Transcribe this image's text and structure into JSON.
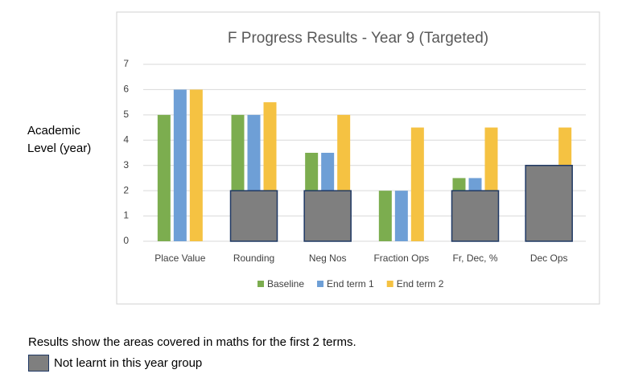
{
  "chart_data": {
    "type": "bar",
    "title": "F Progress Results - Year 9 (Targeted)",
    "y_label": "Academic Level (year)",
    "categories": [
      "Place Value",
      "Rounding",
      "Neg Nos",
      "Fraction Ops",
      "Fr, Dec, %",
      "Dec Ops"
    ],
    "series": [
      {
        "name": "Baseline",
        "color": "#7cad4f",
        "values": [
          5,
          5,
          3.5,
          2,
          2.5,
          null
        ]
      },
      {
        "name": "End term 1",
        "color": "#6e9fd6",
        "values": [
          6,
          5,
          3.5,
          2,
          2.5,
          null
        ]
      },
      {
        "name": "End term 2",
        "color": "#f5c242",
        "values": [
          6,
          5.5,
          5,
          4.5,
          4.5,
          4.5
        ]
      }
    ],
    "mask_values": [
      null,
      2,
      2,
      null,
      2,
      3
    ],
    "mask_color": "#7f7f7f",
    "mask_label": "Not learnt in this year group",
    "note": "Results show the areas covered in maths for the first 2 terms.",
    "ylim": [
      0,
      7
    ],
    "yticks": [
      0,
      1,
      2,
      3,
      4,
      5,
      6,
      7
    ],
    "grid": true,
    "legend": "bottom"
  }
}
